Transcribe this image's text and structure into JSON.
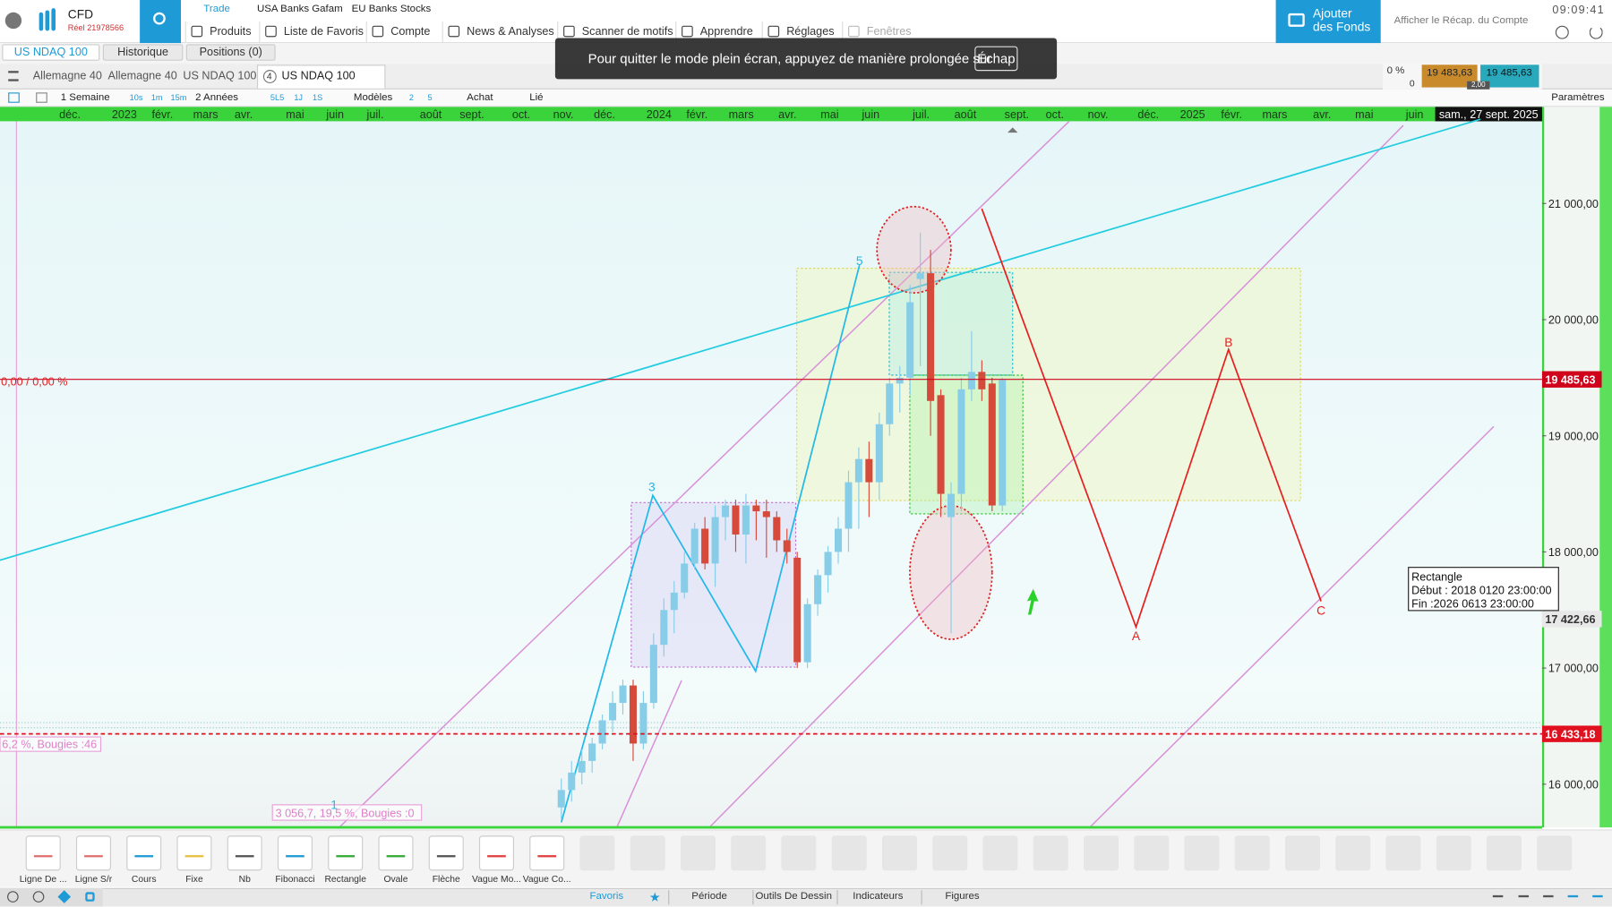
{
  "header": {
    "brand": "CFD",
    "account": "Réel 21978566",
    "top_tabs": [
      "Trade",
      "USA Banks Gafam",
      "EU Banks Stocks"
    ],
    "menu": [
      "Produits",
      "Liste de Favoris",
      "Compte",
      "News & Analyses",
      "Scanner de motifs",
      "Apprendre",
      "Réglages",
      "Fenêtres"
    ],
    "add_funds": [
      "Ajouter",
      "des Fonds"
    ],
    "recap": "Afficher le Récap. du Compte",
    "time": "09:09:41"
  },
  "sub_tabs": [
    "US NDAQ 100",
    "Historique",
    "Positions (0)"
  ],
  "banner": {
    "text": "Pour quitter le mode plein écran, appuyez de manière prolongée sur",
    "key": "Échap"
  },
  "chart_tabs": [
    "Allemagne 40",
    "Allemagne 40",
    "US NDAQ 100"
  ],
  "active_tab": {
    "number": "4",
    "name": "US NDAQ 100"
  },
  "quote": {
    "change": "0 %",
    "count": "0",
    "bid": "19 483,63",
    "ask": "19 485,63",
    "spread": "2,00"
  },
  "toolbar": [
    "1 Semaine",
    "10s",
    "1m",
    "15m",
    "2 Années",
    "5L5",
    "1J",
    "1S",
    "Modèles",
    "2",
    "5",
    "Achat",
    "Lié",
    "Paramètres"
  ],
  "chart_data": {
    "type": "candlestick",
    "ylim": [
      15628,
      21708
    ],
    "yticks": [
      {
        "value": 16000,
        "label": "16 000,00"
      },
      {
        "value": 17000,
        "label": "17 000,00"
      },
      {
        "value": 18000,
        "label": "18 000,00"
      },
      {
        "value": 19000,
        "label": "19 000,00"
      },
      {
        "value": 20000,
        "label": "20 000,00"
      },
      {
        "value": 21000,
        "label": "21 000,00"
      }
    ],
    "up_color": "#87cde8",
    "down_color": "#d64a3b",
    "open": [
      15800,
      15950,
      16100,
      16200,
      16350,
      16550,
      16700,
      16850,
      16350,
      16700,
      17200,
      17500,
      17650,
      17900,
      18200,
      17900,
      18300,
      18400,
      18150,
      18400,
      18350,
      18300,
      18100,
      17950,
      17050,
      17550,
      17800,
      18000,
      18200,
      18600,
      18800,
      18600,
      19100,
      19450,
      19500,
      20350,
      20400,
      19350,
      18300,
      18500,
      19400,
      19550,
      19450,
      18400
    ],
    "high": [
      16050,
      16200,
      16300,
      16400,
      16600,
      16800,
      16900,
      16900,
      16800,
      17300,
      17600,
      17750,
      18000,
      18250,
      18300,
      18400,
      18450,
      18450,
      18500,
      18450,
      18450,
      18350,
      18200,
      18000,
      17600,
      17850,
      18050,
      18300,
      18700,
      18900,
      18950,
      19200,
      19500,
      19600,
      20300,
      20750,
      20600,
      19400,
      18600,
      19500,
      19900,
      19650,
      19500,
      19500
    ],
    "low": [
      15700,
      15850,
      16000,
      16100,
      16300,
      16450,
      16600,
      16200,
      16300,
      16650,
      17100,
      17300,
      17600,
      17850,
      17850,
      17700,
      18100,
      18000,
      17900,
      18100,
      17950,
      18000,
      17900,
      17000,
      17000,
      17450,
      17650,
      17900,
      18000,
      18200,
      18300,
      18450,
      19000,
      19200,
      19350,
      19600,
      19000,
      18300,
      17300,
      18350,
      19300,
      19300,
      18350,
      18350
    ],
    "close": [
      15950,
      16100,
      16200,
      16350,
      16550,
      16700,
      16850,
      16350,
      16700,
      17200,
      17500,
      17650,
      17900,
      18200,
      17900,
      18300,
      18400,
      18150,
      18400,
      18350,
      18300,
      18100,
      18000,
      17050,
      17550,
      17800,
      18000,
      18200,
      18600,
      18800,
      18600,
      19100,
      19450,
      19500,
      20150,
      20400,
      19300,
      18500,
      18500,
      19400,
      19550,
      19400,
      18400,
      19480
    ],
    "price_lines": [
      {
        "value": 19485.63,
        "label": "19 485,63",
        "color": "#d0021b"
      },
      {
        "value": 17422.66,
        "label": "17 422,66",
        "color": "#333333"
      },
      {
        "value": 16433.18,
        "label": "16 433,18",
        "color": "#e0101e"
      }
    ],
    "date_labels": [
      "déc.",
      "2023",
      "févr.",
      "mars",
      "avr.",
      "mai",
      "juin",
      "juil.",
      "août",
      "sept.",
      "oct.",
      "nov.",
      "déc.",
      "2024",
      "févr.",
      "mars",
      "avr.",
      "mai",
      "juin",
      "juil.",
      "août",
      "sept.",
      "oct.",
      "nov.",
      "déc.",
      "2025",
      "févr.",
      "mars",
      "avr.",
      "mai",
      "juin"
    ],
    "cursor_date": "sam., 27 sept. 2025",
    "annotations": {
      "change": "0,00 / 0,00 %",
      "bars_1": "6,2 %, Bougies :46",
      "bars_2": "3 056,7, 19,5 %, Bougies :0"
    },
    "wave_labels": [
      "1",
      "3",
      "5",
      "A",
      "B",
      "C"
    ],
    "tooltip": [
      "Rectangle",
      "Début : 2018 0120 23:00:00",
      "Fin :2026 0613 23:00:00"
    ]
  },
  "drawing_tools": [
    "Ligne De ...",
    "Ligne S/r",
    "Cours",
    "Fixe",
    "Nb",
    "Fibonacci",
    "Rectangle",
    "Ovale",
    "Flèche",
    "Vague Mo...",
    "Vague Co..."
  ],
  "footer_tabs": [
    "Favoris",
    "Période",
    "Outils De Dessin",
    "Indicateurs",
    "Figures"
  ]
}
